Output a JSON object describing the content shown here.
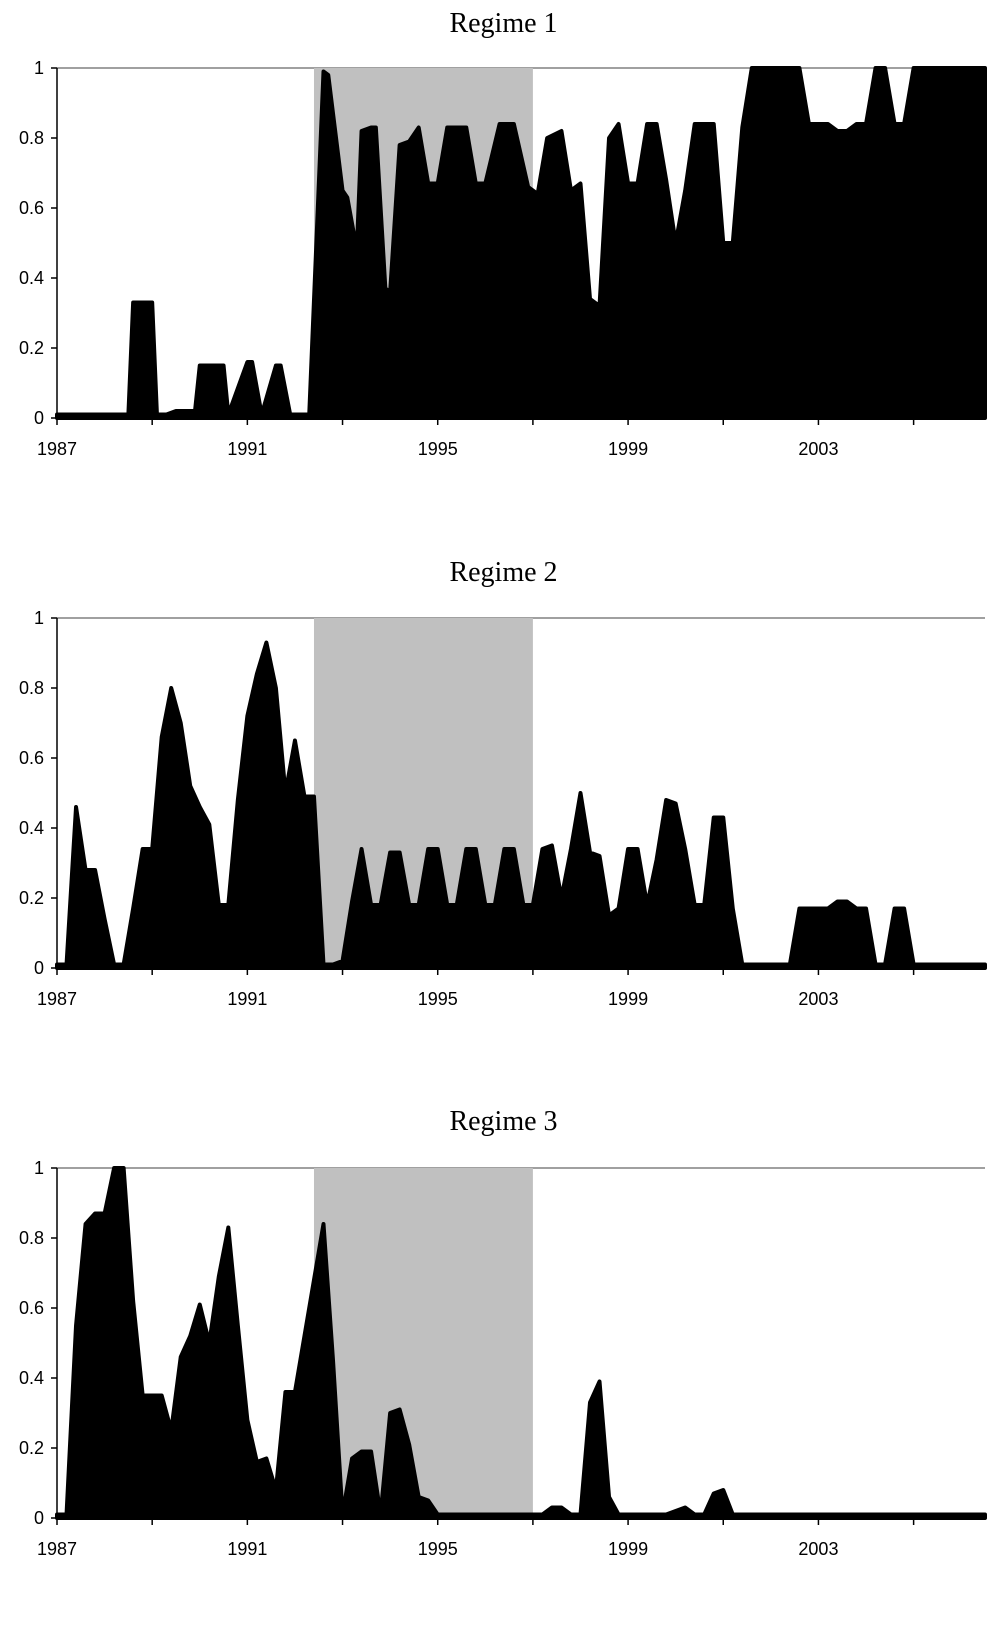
{
  "chart_data": [
    {
      "type": "area",
      "title": "Regime 1",
      "xlabel": "",
      "ylabel": "",
      "xlim": [
        1987,
        2006.5
      ],
      "ylim": [
        0,
        1
      ],
      "x_tick_labels": [
        "1987",
        "1991",
        "1995",
        "1999",
        "2003"
      ],
      "y_tick_labels": [
        "0",
        "0.2",
        "0.4",
        "0.6",
        "0.8",
        "1"
      ],
      "shaded_region": {
        "x_start": 1992.4,
        "x_end": 1997.0,
        "color": "#c0c0c0"
      },
      "fill_color": "#000000",
      "x": [
        1987.0,
        1988.5,
        1988.6,
        1988.7,
        1989.0,
        1989.1,
        1989.3,
        1989.5,
        1989.9,
        1990.0,
        1990.5,
        1990.6,
        1991.0,
        1991.1,
        1991.3,
        1991.6,
        1991.7,
        1991.9,
        1992.2,
        1992.3,
        1992.6,
        1992.7,
        1993.0,
        1993.1,
        1993.3,
        1993.4,
        1993.6,
        1993.7,
        1993.9,
        1994.0,
        1994.2,
        1994.4,
        1994.6,
        1994.8,
        1995.0,
        1995.2,
        1995.4,
        1995.6,
        1995.8,
        1996.0,
        1996.3,
        1996.6,
        1996.9,
        1997.1,
        1997.3,
        1997.6,
        1997.8,
        1998.0,
        1998.2,
        1998.4,
        1998.6,
        1998.8,
        1999.0,
        1999.2,
        1999.4,
        1999.6,
        1999.8,
        2000.0,
        2000.2,
        2000.4,
        2000.6,
        2000.8,
        2001.0,
        2001.2,
        2001.4,
        2001.6,
        2001.8,
        2002.0,
        2002.2,
        2002.4,
        2002.6,
        2002.8,
        2003.0,
        2003.2,
        2003.4,
        2003.6,
        2003.8,
        2004.0,
        2004.2,
        2004.4,
        2004.6,
        2004.8,
        2005.0,
        2005.2,
        2005.4,
        2005.6,
        2005.8,
        2006.0,
        2006.2,
        2006.5
      ],
      "y": [
        0.01,
        0.01,
        0.33,
        0.33,
        0.33,
        0.01,
        0.01,
        0.02,
        0.02,
        0.15,
        0.15,
        0.01,
        0.16,
        0.16,
        0.01,
        0.15,
        0.15,
        0.01,
        0.01,
        0.01,
        0.99,
        0.98,
        0.65,
        0.63,
        0.48,
        0.82,
        0.83,
        0.83,
        0.37,
        0.36,
        0.78,
        0.79,
        0.83,
        0.67,
        0.67,
        0.83,
        0.83,
        0.83,
        0.67,
        0.67,
        0.84,
        0.84,
        0.66,
        0.64,
        0.8,
        0.82,
        0.65,
        0.67,
        0.34,
        0.32,
        0.8,
        0.84,
        0.67,
        0.67,
        0.84,
        0.84,
        0.68,
        0.5,
        0.65,
        0.84,
        0.84,
        0.84,
        0.5,
        0.5,
        0.83,
        1.0,
        1.0,
        1.0,
        1.0,
        1.0,
        1.0,
        0.84,
        0.84,
        0.84,
        0.82,
        0.82,
        0.84,
        0.84,
        1.0,
        1.0,
        0.84,
        0.84,
        1.0,
        1.0,
        1.0,
        1.0,
        1.0,
        1.0,
        1.0,
        1.0
      ]
    },
    {
      "type": "area",
      "title": "Regime 2",
      "xlabel": "",
      "ylabel": "",
      "xlim": [
        1987,
        2006.5
      ],
      "ylim": [
        0,
        1
      ],
      "x_tick_labels": [
        "1987",
        "1991",
        "1995",
        "1999",
        "2003"
      ],
      "y_tick_labels": [
        "0",
        "0.2",
        "0.4",
        "0.6",
        "0.8",
        "1"
      ],
      "shaded_region": {
        "x_start": 1992.4,
        "x_end": 1997.0,
        "color": "#c0c0c0"
      },
      "fill_color": "#000000",
      "x": [
        1987.0,
        1987.2,
        1987.4,
        1987.6,
        1987.8,
        1988.0,
        1988.2,
        1988.4,
        1988.6,
        1988.8,
        1989.0,
        1989.2,
        1989.4,
        1989.6,
        1989.8,
        1990.0,
        1990.2,
        1990.4,
        1990.6,
        1990.8,
        1991.0,
        1991.2,
        1991.4,
        1991.6,
        1991.8,
        1992.0,
        1992.2,
        1992.4,
        1992.6,
        1992.8,
        1993.0,
        1993.2,
        1993.4,
        1993.6,
        1993.8,
        1994.0,
        1994.2,
        1994.4,
        1994.6,
        1994.8,
        1995.0,
        1995.2,
        1995.4,
        1995.6,
        1995.8,
        1996.0,
        1996.2,
        1996.4,
        1996.6,
        1996.8,
        1997.0,
        1997.2,
        1997.4,
        1997.6,
        1997.8,
        1998.0,
        1998.2,
        1998.4,
        1998.6,
        1998.8,
        1999.0,
        1999.2,
        1999.4,
        1999.6,
        1999.8,
        2000.0,
        2000.2,
        2000.4,
        2000.6,
        2000.8,
        2001.0,
        2001.2,
        2001.4,
        2001.6,
        2001.8,
        2002.0,
        2002.2,
        2002.4,
        2002.6,
        2002.8,
        2003.0,
        2003.2,
        2003.4,
        2003.6,
        2003.8,
        2004.0,
        2004.2,
        2004.4,
        2004.6,
        2004.8,
        2005.0,
        2005.2,
        2005.4,
        2005.6,
        2005.8,
        2006.0,
        2006.2,
        2006.5
      ],
      "y": [
        0.01,
        0.01,
        0.46,
        0.28,
        0.28,
        0.14,
        0.01,
        0.01,
        0.17,
        0.34,
        0.34,
        0.66,
        0.8,
        0.7,
        0.52,
        0.46,
        0.41,
        0.18,
        0.18,
        0.48,
        0.72,
        0.84,
        0.93,
        0.8,
        0.5,
        0.65,
        0.49,
        0.49,
        0.01,
        0.01,
        0.02,
        0.19,
        0.34,
        0.18,
        0.18,
        0.33,
        0.33,
        0.18,
        0.18,
        0.34,
        0.34,
        0.18,
        0.18,
        0.34,
        0.34,
        0.18,
        0.18,
        0.34,
        0.34,
        0.18,
        0.18,
        0.34,
        0.35,
        0.2,
        0.34,
        0.5,
        0.33,
        0.32,
        0.15,
        0.17,
        0.34,
        0.34,
        0.18,
        0.31,
        0.48,
        0.47,
        0.34,
        0.18,
        0.18,
        0.43,
        0.43,
        0.17,
        0.01,
        0.01,
        0.01,
        0.01,
        0.01,
        0.01,
        0.17,
        0.17,
        0.17,
        0.17,
        0.19,
        0.19,
        0.17,
        0.17,
        0.01,
        0.01,
        0.17,
        0.17,
        0.01,
        0.01,
        0.01,
        0.01,
        0.01,
        0.01,
        0.01,
        0.01
      ]
    },
    {
      "type": "area",
      "title": "Regime 3",
      "xlabel": "",
      "ylabel": "",
      "xlim": [
        1987,
        2006.5
      ],
      "ylim": [
        0,
        1
      ],
      "x_tick_labels": [
        "1987",
        "1991",
        "1995",
        "1999",
        "2003"
      ],
      "y_tick_labels": [
        "0",
        "0.2",
        "0.4",
        "0.6",
        "0.8",
        "1"
      ],
      "shaded_region": {
        "x_start": 1992.4,
        "x_end": 1997.0,
        "color": "#c0c0c0"
      },
      "fill_color": "#000000",
      "x": [
        1987.0,
        1987.2,
        1987.4,
        1987.6,
        1987.8,
        1988.0,
        1988.2,
        1988.4,
        1988.6,
        1988.8,
        1989.0,
        1989.2,
        1989.4,
        1989.6,
        1989.8,
        1990.0,
        1990.2,
        1990.4,
        1990.6,
        1990.8,
        1991.0,
        1991.2,
        1991.4,
        1991.6,
        1991.8,
        1992.0,
        1992.2,
        1992.4,
        1992.6,
        1992.8,
        1993.0,
        1993.2,
        1993.4,
        1993.6,
        1993.8,
        1994.0,
        1994.2,
        1994.4,
        1994.6,
        1994.8,
        1995.0,
        1995.2,
        1995.4,
        1995.6,
        1996.0,
        1996.4,
        1996.8,
        1997.0,
        1997.2,
        1997.4,
        1997.6,
        1997.8,
        1998.0,
        1998.2,
        1998.4,
        1998.6,
        1998.8,
        1999.0,
        1999.2,
        1999.4,
        1999.8,
        2000.0,
        2000.2,
        2000.4,
        2000.6,
        2000.8,
        2001.0,
        2001.2,
        2001.4,
        2001.6,
        2001.8,
        2002.0,
        2002.5,
        2003.0,
        2003.5,
        2004.0,
        2004.5,
        2005.0,
        2005.5,
        2006.0,
        2006.5
      ],
      "y": [
        0.01,
        0.01,
        0.55,
        0.84,
        0.87,
        0.87,
        1.0,
        1.0,
        0.62,
        0.35,
        0.35,
        0.35,
        0.25,
        0.46,
        0.52,
        0.61,
        0.5,
        0.69,
        0.83,
        0.55,
        0.28,
        0.16,
        0.17,
        0.08,
        0.36,
        0.36,
        0.52,
        0.68,
        0.84,
        0.45,
        0.01,
        0.17,
        0.19,
        0.19,
        0.01,
        0.3,
        0.31,
        0.21,
        0.06,
        0.05,
        0.01,
        0.01,
        0.01,
        0.01,
        0.01,
        0.01,
        0.01,
        0.01,
        0.01,
        0.03,
        0.03,
        0.01,
        0.01,
        0.33,
        0.39,
        0.06,
        0.01,
        0.01,
        0.01,
        0.01,
        0.01,
        0.02,
        0.03,
        0.01,
        0.01,
        0.07,
        0.08,
        0.01,
        0.01,
        0.01,
        0.01,
        0.01,
        0.01,
        0.01,
        0.01,
        0.01,
        0.01,
        0.01,
        0.01,
        0.01,
        0.01
      ]
    }
  ]
}
